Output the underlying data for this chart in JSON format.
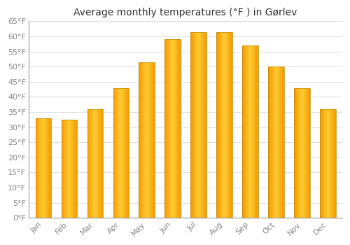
{
  "months": [
    "Jan",
    "Feb",
    "Mar",
    "Apr",
    "May",
    "Jun",
    "Jul",
    "Aug",
    "Sep",
    "Oct",
    "Nov",
    "Dec"
  ],
  "values": [
    33,
    32.5,
    36,
    43,
    51.5,
    59,
    61.5,
    61.5,
    57,
    50,
    43,
    36
  ],
  "bar_color_center": "#FFCC33",
  "bar_color_edge": "#F5A000",
  "bar_edge_color": "#CC8800",
  "title": "Average monthly temperatures (°F ) in Gørlev",
  "ylim": [
    0,
    65
  ],
  "yticks": [
    0,
    5,
    10,
    15,
    20,
    25,
    30,
    35,
    40,
    45,
    50,
    55,
    60,
    65
  ],
  "ytick_labels": [
    "0°F",
    "5°F",
    "10°F",
    "15°F",
    "20°F",
    "25°F",
    "30°F",
    "35°F",
    "40°F",
    "45°F",
    "50°F",
    "55°F",
    "60°F",
    "65°F"
  ],
  "bg_color": "#FFFFFF",
  "grid_color": "#DDDDDD",
  "title_fontsize": 10,
  "tick_fontsize": 8,
  "tick_color": "#888888"
}
